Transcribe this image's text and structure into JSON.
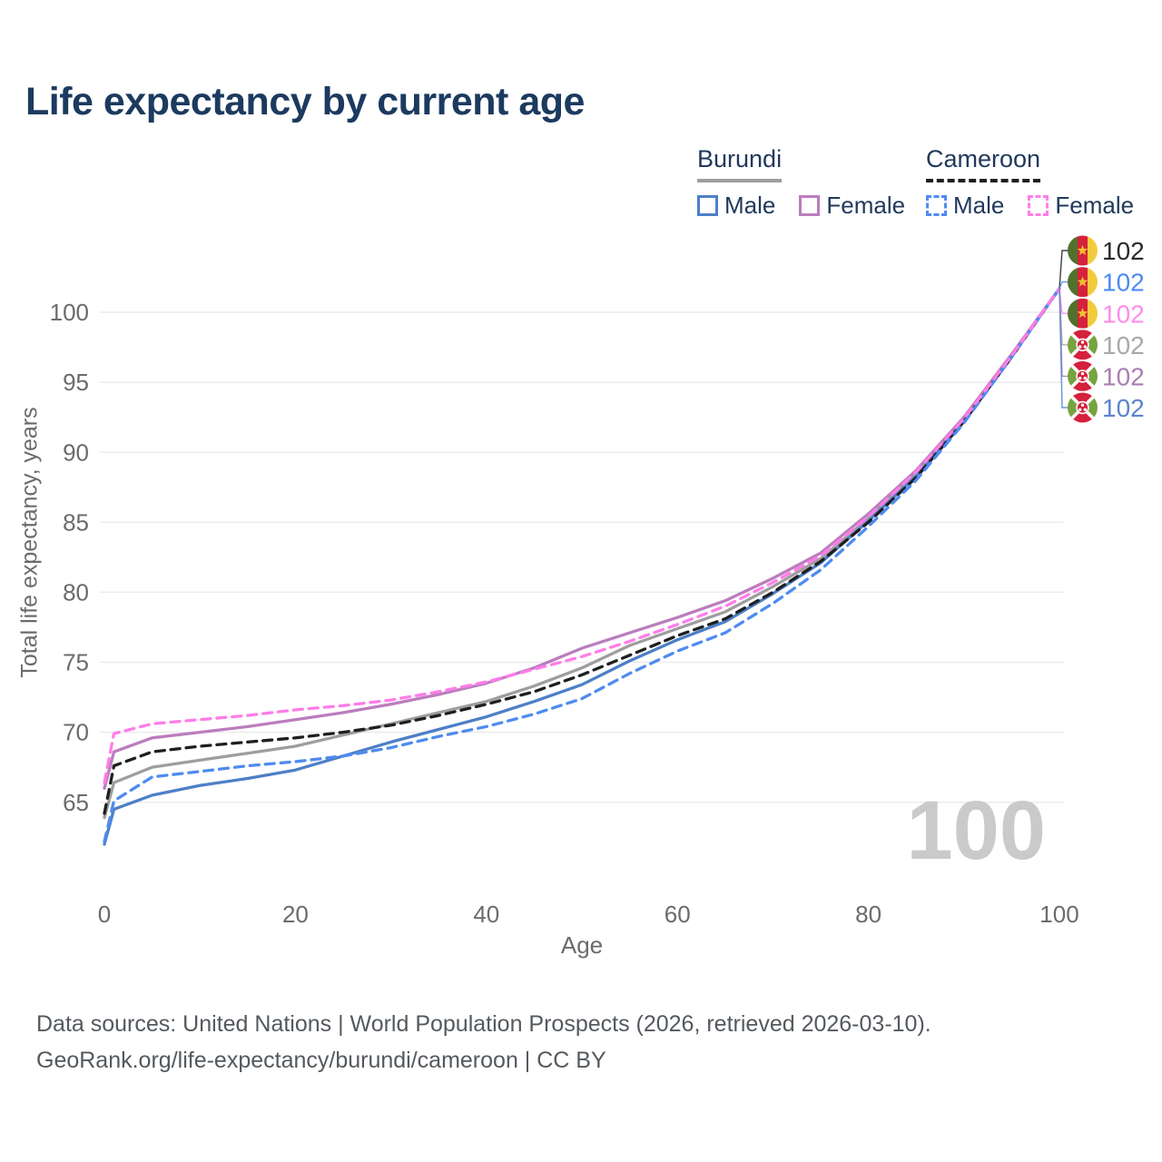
{
  "page": {
    "title": "Life expectancy by current age"
  },
  "legend": {
    "groups": [
      {
        "label": "Burundi",
        "line_style": "solid",
        "line_color": "#9e9e9e",
        "items": [
          {
            "label": "Male",
            "color": "#4d7fc6",
            "dashed": false
          },
          {
            "label": "Female",
            "color": "#bb7dbd",
            "dashed": false
          }
        ]
      },
      {
        "label": "Cameroon",
        "line_style": "dashed",
        "line_color": "#1f1f1f",
        "items": [
          {
            "label": "Male",
            "color": "#4f8bf0",
            "dashed": true
          },
          {
            "label": "Female",
            "color": "#ff7de9",
            "dashed": true
          }
        ]
      }
    ]
  },
  "chart_data": {
    "type": "line",
    "title": "Life expectancy by current age",
    "xlabel": "Age",
    "ylabel": "Total life expectancy, years",
    "xlim": [
      0,
      100
    ],
    "ylim": [
      61.5,
      102.5
    ],
    "x_ticks": [
      0,
      20,
      40,
      60,
      80,
      100
    ],
    "y_ticks": [
      65,
      70,
      75,
      80,
      85,
      90,
      95,
      100
    ],
    "grid": "horizontal",
    "legend_position": "top-right",
    "watermark_current_age": "100",
    "x": [
      0,
      1,
      5,
      10,
      15,
      20,
      25,
      30,
      35,
      40,
      45,
      50,
      55,
      60,
      65,
      70,
      75,
      80,
      85,
      90,
      95,
      100
    ],
    "series": [
      {
        "name": "Burundi Total",
        "country": "burundi",
        "sex": "total",
        "color": "#9e9e9e",
        "dashed": false,
        "values": [
          63.9,
          66.4,
          67.5,
          68.0,
          68.5,
          69.0,
          69.8,
          70.6,
          71.4,
          72.2,
          73.3,
          74.6,
          76.2,
          77.4,
          78.6,
          80.4,
          82.4,
          85.3,
          88.5,
          92.4,
          96.9,
          101.7
        ]
      },
      {
        "name": "Burundi Male",
        "country": "burundi",
        "sex": "male",
        "color": "#4d7fc6",
        "dashed": false,
        "values": [
          62.0,
          64.5,
          65.5,
          66.2,
          66.7,
          67.3,
          68.3,
          69.3,
          70.2,
          71.1,
          72.2,
          73.4,
          75.1,
          76.6,
          77.9,
          79.9,
          82.1,
          85.1,
          88.3,
          92.3,
          96.9,
          101.7
        ]
      },
      {
        "name": "Burundi Female",
        "country": "burundi",
        "sex": "female",
        "color": "#bb7dbd",
        "dashed": false,
        "values": [
          66.0,
          68.6,
          69.6,
          70.0,
          70.4,
          70.9,
          71.4,
          72.0,
          72.7,
          73.5,
          74.6,
          76.0,
          77.1,
          78.2,
          79.4,
          81.0,
          82.8,
          85.6,
          88.7,
          92.5,
          97.0,
          101.7
        ]
      },
      {
        "name": "Cameroon Total",
        "country": "cameroon",
        "sex": "total",
        "color": "#1f1f1f",
        "dashed": true,
        "values": [
          64.2,
          67.6,
          68.6,
          69.0,
          69.3,
          69.6,
          70.0,
          70.5,
          71.2,
          72.0,
          72.9,
          74.1,
          75.5,
          76.9,
          78.1,
          80.0,
          82.2,
          85.0,
          88.2,
          92.2,
          96.8,
          101.7
        ]
      },
      {
        "name": "Cameroon Male",
        "country": "cameroon",
        "sex": "male",
        "color": "#4f8bf0",
        "dashed": true,
        "values": [
          62.2,
          65.1,
          66.8,
          67.2,
          67.6,
          67.9,
          68.3,
          68.9,
          69.7,
          70.4,
          71.3,
          72.4,
          74.2,
          75.8,
          77.1,
          79.2,
          81.6,
          84.7,
          88.0,
          92.1,
          96.8,
          101.7
        ]
      },
      {
        "name": "Cameroon Female",
        "country": "cameroon",
        "sex": "female",
        "color": "#ff7de9",
        "dashed": true,
        "values": [
          66.4,
          69.9,
          70.6,
          70.9,
          71.2,
          71.6,
          71.9,
          72.3,
          72.9,
          73.6,
          74.5,
          75.4,
          76.5,
          77.7,
          79.0,
          80.7,
          82.6,
          85.4,
          88.6,
          92.4,
          96.9,
          101.7
        ]
      }
    ],
    "end_labels": [
      {
        "flag": "cameroon",
        "value": "102",
        "color": "#2b2b2b"
      },
      {
        "flag": "cameroon",
        "value": "102",
        "color": "#4f8bf0"
      },
      {
        "flag": "cameroon",
        "value": "102",
        "color": "#ff8ceb"
      },
      {
        "flag": "burundi",
        "value": "102",
        "color": "#a8a8a8"
      },
      {
        "flag": "burundi",
        "value": "102",
        "color": "#a87fb3"
      },
      {
        "flag": "burundi",
        "value": "102",
        "color": "#5b84cf"
      }
    ]
  },
  "footer": {
    "line1": "Data sources: United Nations | World Population Prospects (2026, retrieved 2026-03-10).",
    "line2": "GeoRank.org/life-expectancy/burundi/cameroon | CC BY"
  }
}
